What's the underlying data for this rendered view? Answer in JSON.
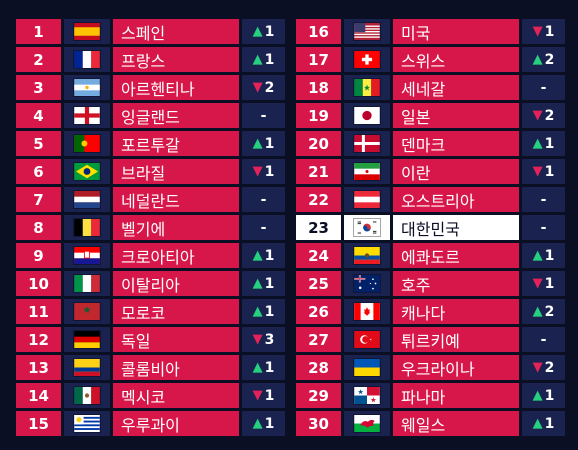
{
  "rankings": [
    {
      "rank": "1",
      "country": "스페인",
      "change_dir": "up",
      "change_val": "1",
      "flag": "es-flag"
    },
    {
      "rank": "2",
      "country": "프랑스",
      "change_dir": "up",
      "change_val": "1",
      "flag": "fr-flag"
    },
    {
      "rank": "3",
      "country": "아르헨티나",
      "change_dir": "down",
      "change_val": "2",
      "flag": "ar-flag"
    },
    {
      "rank": "4",
      "country": "잉글랜드",
      "change_dir": "none",
      "change_val": "-",
      "flag": "en-flag"
    },
    {
      "rank": "5",
      "country": "포르투갈",
      "change_dir": "up",
      "change_val": "1",
      "flag": "pt-flag"
    },
    {
      "rank": "6",
      "country": "브라질",
      "change_dir": "down",
      "change_val": "1",
      "flag": "br-flag"
    },
    {
      "rank": "7",
      "country": "네덜란드",
      "change_dir": "none",
      "change_val": "-",
      "flag": "nl-flag"
    },
    {
      "rank": "8",
      "country": "벨기에",
      "change_dir": "none",
      "change_val": "-",
      "flag": "be-flag"
    },
    {
      "rank": "9",
      "country": "크로아티아",
      "change_dir": "up",
      "change_val": "1",
      "flag": "hr-flag"
    },
    {
      "rank": "10",
      "country": "이탈리아",
      "change_dir": "up",
      "change_val": "1",
      "flag": "it-flag"
    },
    {
      "rank": "11",
      "country": "모로코",
      "change_dir": "up",
      "change_val": "1",
      "flag": "ma-flag"
    },
    {
      "rank": "12",
      "country": "독일",
      "change_dir": "down",
      "change_val": "3",
      "flag": "de-flag"
    },
    {
      "rank": "13",
      "country": "콜롬비아",
      "change_dir": "up",
      "change_val": "1",
      "flag": "co-flag"
    },
    {
      "rank": "14",
      "country": "멕시코",
      "change_dir": "down",
      "change_val": "1",
      "flag": "mx-flag"
    },
    {
      "rank": "15",
      "country": "우루과이",
      "change_dir": "up",
      "change_val": "1",
      "flag": "uy-flag"
    },
    {
      "rank": "16",
      "country": "미국",
      "change_dir": "down",
      "change_val": "1",
      "flag": "us-flag"
    },
    {
      "rank": "17",
      "country": "스위스",
      "change_dir": "up",
      "change_val": "2",
      "flag": "ch-flag"
    },
    {
      "rank": "18",
      "country": "세네갈",
      "change_dir": "none",
      "change_val": "-",
      "flag": "sn-flag"
    },
    {
      "rank": "19",
      "country": "일본",
      "change_dir": "down",
      "change_val": "2",
      "flag": "jp-flag"
    },
    {
      "rank": "20",
      "country": "덴마크",
      "change_dir": "up",
      "change_val": "1",
      "flag": "dk-flag"
    },
    {
      "rank": "21",
      "country": "이란",
      "change_dir": "down",
      "change_val": "1",
      "flag": "ir-flag"
    },
    {
      "rank": "22",
      "country": "오스트리아",
      "change_dir": "none",
      "change_val": "-",
      "flag": "at-flag"
    },
    {
      "rank": "23",
      "country": "대한민국",
      "change_dir": "none",
      "change_val": "-",
      "flag": "kr-flag",
      "highlight": true
    },
    {
      "rank": "24",
      "country": "에콰도르",
      "change_dir": "up",
      "change_val": "1",
      "flag": "ec-flag"
    },
    {
      "rank": "25",
      "country": "호주",
      "change_dir": "down",
      "change_val": "1",
      "flag": "au-flag"
    },
    {
      "rank": "26",
      "country": "캐나다",
      "change_dir": "up",
      "change_val": "2",
      "flag": "ca-flag"
    },
    {
      "rank": "27",
      "country": "튀르키예",
      "change_dir": "none",
      "change_val": "-",
      "flag": "tr-flag"
    },
    {
      "rank": "28",
      "country": "우크라이나",
      "change_dir": "down",
      "change_val": "2",
      "flag": "ua-flag"
    },
    {
      "rank": "29",
      "country": "파나마",
      "change_dir": "up",
      "change_val": "1",
      "flag": "pa-flag"
    },
    {
      "rank": "30",
      "country": "웨일스",
      "change_dir": "up",
      "change_val": "1",
      "flag": "wa-flag"
    }
  ],
  "colors": {
    "background": "#0a0f24",
    "rank_cell": "#d7174a",
    "flag_cell": "#1a2350",
    "up": "#27d07e",
    "down": "#e3225a",
    "highlight": "#ffffff"
  }
}
